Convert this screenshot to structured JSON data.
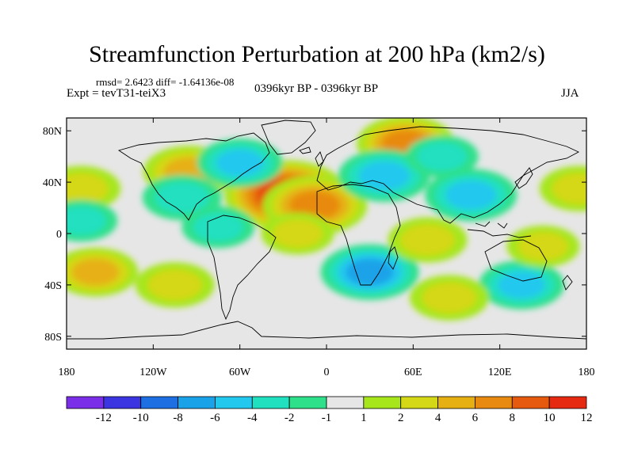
{
  "title": "Streamfunction Perturbation at 200 hPa (km2/s)",
  "stats": "rmsd= 2.6423  diff= -1.64136e-08",
  "experiment": "Expt = tevT31-teiX3",
  "period": "0396kyr BP - 0396kyr BP",
  "season": "JJA",
  "colors": {
    "background": "#e6e6e6",
    "coastline": "#000000"
  },
  "chart_data": {
    "type": "contour-map",
    "variable": "Streamfunction perturbation",
    "level": "200 hPa",
    "units": "km2/s",
    "x_range": [
      -180,
      180
    ],
    "y_range": [
      -90,
      90
    ],
    "x_ticks": [
      {
        "value": -180,
        "label": "180"
      },
      {
        "value": -120,
        "label": "120W"
      },
      {
        "value": -60,
        "label": "60W"
      },
      {
        "value": 0,
        "label": "0"
      },
      {
        "value": 60,
        "label": "60E"
      },
      {
        "value": 120,
        "label": "120E"
      },
      {
        "value": 180,
        "label": "180"
      }
    ],
    "y_ticks": [
      {
        "value": 80,
        "label": "80N"
      },
      {
        "value": 40,
        "label": "40N"
      },
      {
        "value": 0,
        "label": "0"
      },
      {
        "value": -40,
        "label": "40S"
      },
      {
        "value": -80,
        "label": "80S"
      }
    ],
    "colorbar": {
      "bins": [
        {
          "color": "#7a2ee8"
        },
        {
          "color": "#3a35e0"
        },
        {
          "color": "#1d6fe2"
        },
        {
          "color": "#1aa2e8"
        },
        {
          "color": "#22c8ee"
        },
        {
          "color": "#20e0c0"
        },
        {
          "color": "#2ee08a"
        },
        {
          "color": "#e6e6e6"
        },
        {
          "color": "#a6e61a"
        },
        {
          "color": "#d4d817"
        },
        {
          "color": "#e6b012"
        },
        {
          "color": "#e88a10"
        },
        {
          "color": "#e65a10"
        },
        {
          "color": "#e62a12"
        }
      ],
      "labels": [
        "-12",
        "-10",
        "-8",
        "-6",
        "-4",
        "-2",
        "-1",
        "1",
        "2",
        "4",
        "6",
        "8",
        "10",
        "12"
      ]
    },
    "features": [
      {
        "lon": -28,
        "lat": 30,
        "value": 10
      },
      {
        "lon": -8,
        "lat": 22,
        "value": 7
      },
      {
        "lon": -95,
        "lat": 48,
        "value": 5
      },
      {
        "lon": -170,
        "lat": 35,
        "value": 3
      },
      {
        "lon": 55,
        "lat": 70,
        "value": 6
      },
      {
        "lon": 175,
        "lat": 35,
        "value": 3
      },
      {
        "lon": -100,
        "lat": 28,
        "value": -3
      },
      {
        "lon": -60,
        "lat": 55,
        "value": -4
      },
      {
        "lon": 40,
        "lat": 45,
        "value": -5
      },
      {
        "lon": 100,
        "lat": 30,
        "value": -5
      },
      {
        "lon": 80,
        "lat": 60,
        "value": -2
      },
      {
        "lon": 30,
        "lat": -30,
        "value": -6
      },
      {
        "lon": 135,
        "lat": -40,
        "value": -4
      },
      {
        "lon": -170,
        "lat": 10,
        "value": -2
      },
      {
        "lon": -160,
        "lat": -30,
        "value": 4
      },
      {
        "lon": -105,
        "lat": -40,
        "value": 3
      },
      {
        "lon": -20,
        "lat": 0,
        "value": 2
      },
      {
        "lon": 70,
        "lat": -5,
        "value": 3
      },
      {
        "lon": 150,
        "lat": -10,
        "value": 2
      },
      {
        "lon": 85,
        "lat": -50,
        "value": 3
      },
      {
        "lon": -75,
        "lat": 5,
        "value": -2
      }
    ]
  }
}
